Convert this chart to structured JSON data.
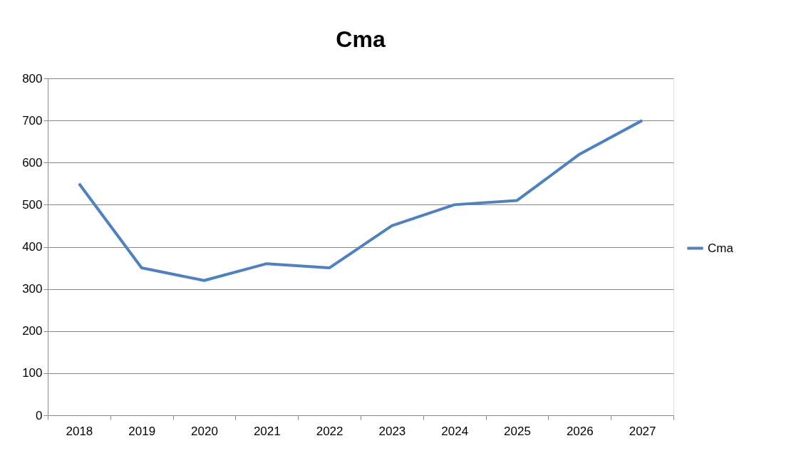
{
  "chart_data": {
    "type": "line",
    "title": "Cma",
    "categories": [
      "2018",
      "2019",
      "2020",
      "2021",
      "2022",
      "2023",
      "2024",
      "2025",
      "2026",
      "2027"
    ],
    "series": [
      {
        "name": "Cma",
        "color": "#4f81bd",
        "values": [
          550,
          350,
          320,
          360,
          350,
          450,
          500,
          510,
          620,
          700
        ]
      }
    ],
    "ylim": [
      0,
      800
    ],
    "yticks": [
      0,
      100,
      200,
      300,
      400,
      500,
      600,
      700,
      800
    ],
    "grid": "y",
    "legend": "right",
    "marker": "none",
    "line_style": "solid"
  }
}
